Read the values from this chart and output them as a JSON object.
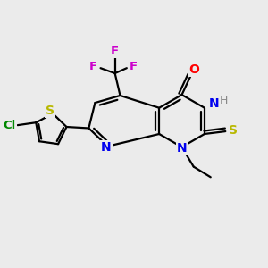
{
  "background_color": "#ebebeb",
  "bond_color": "#000000",
  "atom_colors": {
    "N": "#0000ee",
    "O": "#ff0000",
    "S_yellow": "#b8b800",
    "F": "#cc00cc",
    "Cl": "#008800",
    "H": "#888888"
  },
  "figsize": [
    3.0,
    3.0
  ],
  "dpi": 100,
  "lw": 1.6
}
